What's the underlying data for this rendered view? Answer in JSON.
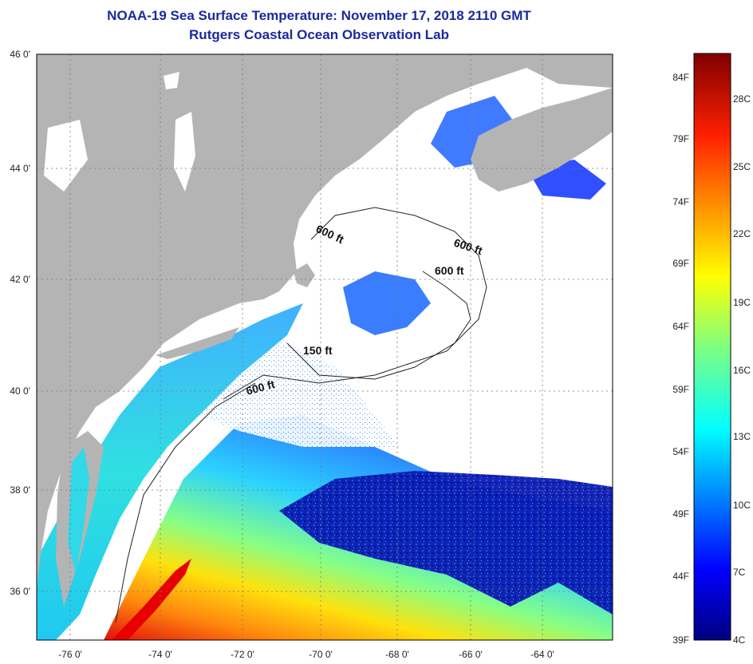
{
  "title": "NOAA-19 Sea Surface Temperature:  November 17, 2018 2110 GMT",
  "subtitle": "Rutgers Coastal Ocean Observation Lab",
  "lat_labels": [
    "46 0'",
    "44 0'",
    "42 0'",
    "40 0'",
    "38 0'",
    "36 0'"
  ],
  "lon_labels": [
    "-76 0'",
    "-74 0'",
    "-72 0'",
    "-70 0'",
    "-68 0'",
    "-66 0'",
    "-64 0'"
  ],
  "contour_labels": [
    "600 ft",
    "600 ft",
    "600 ft",
    "150 ft",
    "600 ft"
  ],
  "colorbar": {
    "f_labels": [
      "84F",
      "79F",
      "74F",
      "69F",
      "64F",
      "59F",
      "54F",
      "49F",
      "44F",
      "39F"
    ],
    "c_labels": [
      "28C",
      "25C",
      "22C",
      "19C",
      "16C",
      "13C",
      "10C",
      "7C",
      "4C"
    ]
  },
  "colors": {
    "title": "#1a2a9c",
    "land": "#b4b4b4",
    "cloud": "#ffffff",
    "cold": "#00007f",
    "warm": "#7f0000"
  }
}
